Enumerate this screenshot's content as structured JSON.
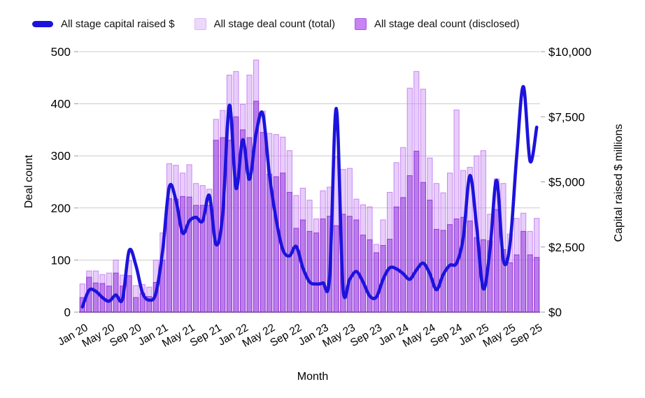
{
  "legend": {
    "items": [
      {
        "label": "All stage capital raised $",
        "type": "line",
        "color": "#1c13dc"
      },
      {
        "label": "All stage deal count (total)",
        "type": "bar",
        "color": "#ecd9fa",
        "border": "#d9b6f6"
      },
      {
        "label": "All stage deal count (disclosed)",
        "type": "bar",
        "color": "#c784f2",
        "border": "#a958e6"
      }
    ]
  },
  "axes": {
    "left": {
      "title": "Deal count",
      "tick_values": [
        0,
        100,
        200,
        300,
        400,
        500
      ],
      "tick_labels": [
        "0",
        "100",
        "200",
        "300",
        "400",
        "500"
      ]
    },
    "right": {
      "title": "Capital raised $ millions",
      "tick_values": [
        0,
        2500,
        5000,
        7500,
        10000
      ],
      "tick_labels": [
        "$0",
        "$2,500",
        "$5,000",
        "$7,500",
        "$10,000"
      ]
    },
    "x": {
      "title": "Month",
      "tick_every": 4
    }
  },
  "chart_data": {
    "type": "combo",
    "ylim_left": [
      0,
      500
    ],
    "ylim_right": [
      0,
      10000
    ],
    "grid": "horizontal",
    "legend_position": "top",
    "categories": [
      "Jan 20",
      "Feb 20",
      "Mar 20",
      "Apr 20",
      "May 20",
      "Jun 20",
      "Jul 20",
      "Aug 20",
      "Sep 20",
      "Oct 20",
      "Nov 20",
      "Dec 20",
      "Jan 21",
      "Feb 21",
      "Mar 21",
      "Apr 21",
      "May 21",
      "Jun 21",
      "Jul 21",
      "Aug 21",
      "Sep 21",
      "Oct 21",
      "Nov 21",
      "Dec 21",
      "Jan 22",
      "Feb 22",
      "Mar 22",
      "Apr 22",
      "May 22",
      "Jun 22",
      "Jul 22",
      "Aug 22",
      "Sep 22",
      "Oct 22",
      "Nov 22",
      "Dec 22",
      "Jan 23",
      "Feb 23",
      "Mar 23",
      "Apr 23",
      "May 23",
      "Jun 23",
      "Jul 23",
      "Aug 23",
      "Sep 23",
      "Oct 23",
      "Nov 23",
      "Dec 23",
      "Jan 24",
      "Feb 24",
      "Mar 24",
      "Apr 24",
      "May 24",
      "Jun 24",
      "Jul 24",
      "Aug 24",
      "Sep 24",
      "Oct 24",
      "Nov 24",
      "Dec 24",
      "Jan 25",
      "Feb 25",
      "Mar 25",
      "Apr 25",
      "May 25",
      "Jun 25",
      "Jul 25",
      "Aug 25",
      "Sep 25"
    ],
    "series": [
      {
        "name": "All stage deal count (total)",
        "type": "bar",
        "axis": "left",
        "values": [
          54,
          79,
          79,
          72,
          75,
          100,
          71,
          99,
          51,
          53,
          48,
          100,
          152,
          285,
          282,
          267,
          283,
          247,
          243,
          236,
          370,
          387,
          455,
          462,
          399,
          455,
          484,
          386,
          343,
          341,
          336,
          310,
          224,
          238,
          215,
          179,
          233,
          240,
          298,
          274,
          276,
          217,
          206,
          202,
          130,
          177,
          230,
          287,
          316,
          430,
          462,
          428,
          296,
          247,
          229,
          267,
          388,
          272,
          278,
          300,
          310,
          188,
          256,
          247,
          150,
          180,
          190,
          155,
          180
        ]
      },
      {
        "name": "All stage deal count (disclosed)",
        "type": "bar",
        "axis": "left",
        "values": [
          28,
          67,
          56,
          55,
          50,
          75,
          50,
          70,
          28,
          36,
          30,
          57,
          100,
          218,
          217,
          222,
          221,
          205,
          205,
          205,
          330,
          335,
          330,
          375,
          350,
          335,
          405,
          345,
          265,
          260,
          267,
          230,
          161,
          177,
          155,
          152,
          179,
          184,
          166,
          188,
          184,
          177,
          148,
          139,
          114,
          128,
          140,
          202,
          220,
          262,
          309,
          249,
          215,
          159,
          157,
          168,
          179,
          182,
          175,
          143,
          139,
          137,
          197,
          120,
          95,
          110,
          155,
          110,
          105
        ]
      },
      {
        "name": "All stage capital raised $",
        "type": "line",
        "axis": "right",
        "values": [
          200,
          840,
          800,
          560,
          420,
          660,
          500,
          2360,
          1800,
          740,
          460,
          720,
          2340,
          4800,
          4300,
          3040,
          3500,
          3640,
          3500,
          4480,
          2600,
          3760,
          7940,
          4760,
          6620,
          5100,
          6860,
          7620,
          5260,
          3560,
          2400,
          2160,
          2520,
          1700,
          1160,
          1080,
          1120,
          1340,
          7820,
          900,
          1260,
          1560,
          1160,
          620,
          580,
          1260,
          1700,
          1660,
          1480,
          1260,
          1620,
          1880,
          1480,
          860,
          1440,
          1800,
          1880,
          2860,
          5240,
          3300,
          900,
          2400,
          5060,
          2000,
          2600,
          6000,
          8660,
          5800,
          7100
        ]
      }
    ],
    "colors": {
      "line": "#1c13dc",
      "bar_total_fill": "rgba(205,145,243,0.45)",
      "bar_total_stroke": "rgba(190,120,240,0.85)",
      "bar_disclosed_fill": "rgba(148,58,222,0.55)",
      "bar_disclosed_stroke": "rgba(130,30,205,0.75)",
      "gridline": "#cccccc",
      "axis_line": "#444444",
      "tick_text": "#000000"
    }
  }
}
